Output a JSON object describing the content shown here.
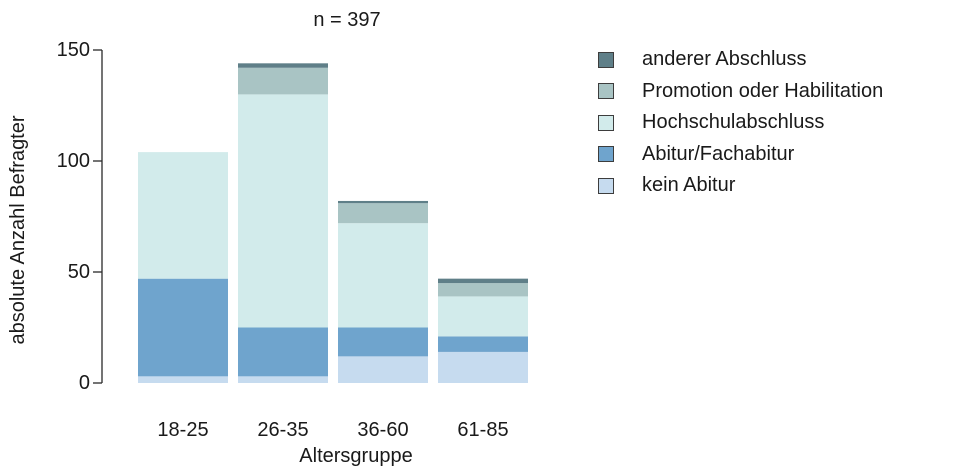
{
  "chart_data": {
    "type": "bar",
    "stacked": true,
    "title": "n = 397",
    "xlabel": "Altersgruppe",
    "ylabel": "absolute Anzahl Befragter",
    "ylim": [
      0,
      150
    ],
    "yticks": [
      0,
      50,
      100,
      150
    ],
    "grid": false,
    "legend_position": "right",
    "categories": [
      "18-25",
      "26-35",
      "36-60",
      "61-85"
    ],
    "series": [
      {
        "name": "kein Abitur",
        "color": "#c6dbef",
        "values": [
          3,
          3,
          12,
          14
        ]
      },
      {
        "name": "Abitur/Fachabitur",
        "color": "#6fa4cd",
        "values": [
          44,
          22,
          13,
          7
        ]
      },
      {
        "name": "Hochschulabschluss",
        "color": "#d2ebeb",
        "values": [
          57,
          105,
          47,
          18
        ]
      },
      {
        "name": "Promotion oder Habilitation",
        "color": "#a9c4c4",
        "values": [
          0,
          12,
          9,
          6
        ]
      },
      {
        "name": "anderer Abschluss",
        "color": "#5f7f88",
        "values": [
          0,
          2,
          1,
          2
        ]
      }
    ]
  }
}
